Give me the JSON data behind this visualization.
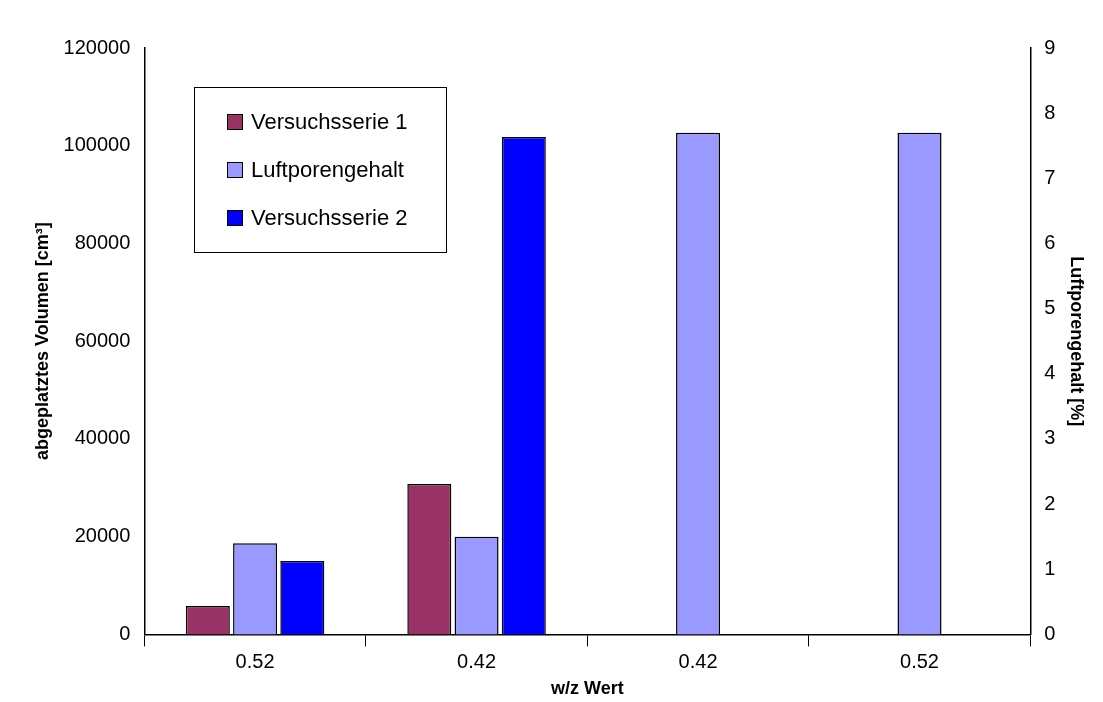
{
  "chart_data": {
    "type": "bar",
    "xlabel": "w/z Wert",
    "ylabel": "abgeplatztes Volumen [cm³]",
    "y2label": "Luftporengehalt [%]",
    "categories": [
      "0.52",
      "0.42",
      "0.42",
      "0.52"
    ],
    "series": [
      {
        "name": "Versuchsserie 1",
        "color": "#993366",
        "values": [
          5800,
          30800,
          null,
          null
        ]
      },
      {
        "name": "Luftporengehalt",
        "color": "#9999ff",
        "values": [
          1.4,
          1.5,
          7.7,
          7.7
        ],
        "axis": "y2"
      },
      {
        "name": "Versuchsserie 2",
        "color": "#0000ff",
        "values": [
          15000,
          101800,
          null,
          null
        ]
      }
    ],
    "ylim": [
      0,
      120000
    ],
    "yticks": [
      0,
      20000,
      40000,
      60000,
      80000,
      100000,
      120000
    ],
    "y2lim": [
      0,
      9
    ],
    "y2ticks": [
      0,
      1,
      2,
      3,
      4,
      5,
      6,
      7,
      8,
      9
    ],
    "grid": false,
    "legend": "top left"
  }
}
